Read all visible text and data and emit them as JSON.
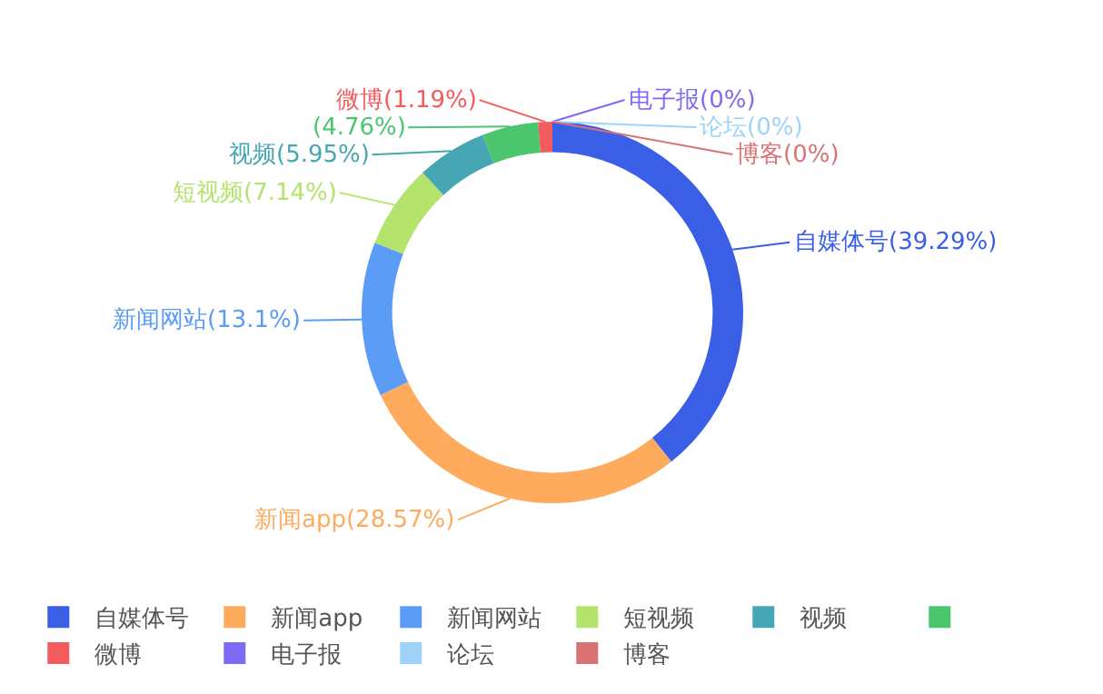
{
  "chart_data": {
    "type": "donut",
    "categories": [
      "自媒体号",
      "新闻app",
      "新闻网站",
      "短视频",
      "视频",
      null,
      "微博",
      "电子报",
      "论坛",
      "博客"
    ],
    "values": [
      39.29,
      28.57,
      13.1,
      7.14,
      5.95,
      4.76,
      1.19,
      0,
      0,
      0
    ],
    "value_labels": [
      "(39.29%)",
      "(28.57%)",
      "(13.1%)",
      "(7.14%)",
      "(5.95%)",
      "(4.76%)",
      "(1.19%)",
      "(0%)",
      "(0%)",
      "(0%)"
    ],
    "colors": [
      "#3a5ee6",
      "#ffab5e",
      "#5b9cf7",
      "#b4e46c",
      "#47a6b3",
      "#4cc56f",
      "#f25c5c",
      "#7b6bf5",
      "#9fd3f9",
      "#d97272"
    ],
    "legend": "bottom"
  }
}
